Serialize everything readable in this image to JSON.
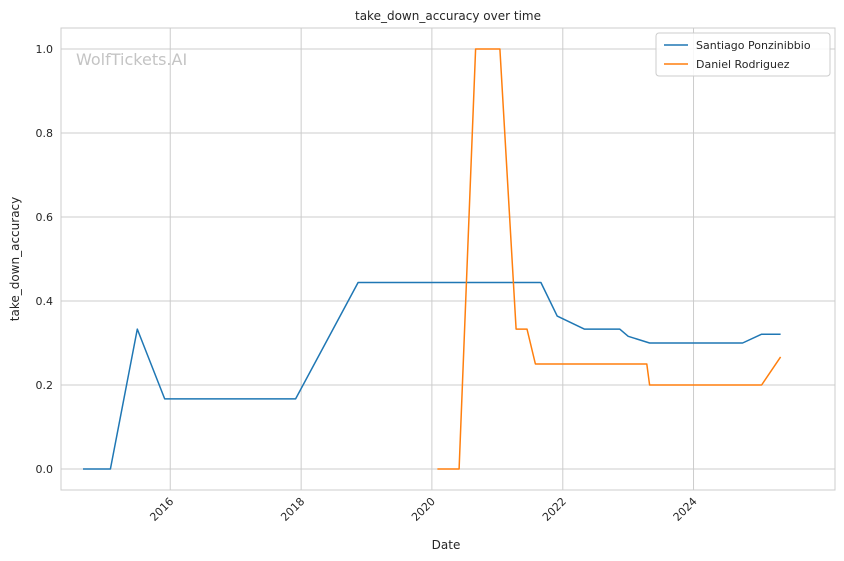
{
  "watermark": "WolfTickets.AI",
  "chart_data": {
    "type": "line",
    "title": "take_down_accuracy over time",
    "xlabel": "Date",
    "ylabel": "take_down_accuracy",
    "x_ticks": [
      "2016",
      "2018",
      "2020",
      "2022",
      "2024"
    ],
    "y_ticks": [
      "0.0",
      "0.2",
      "0.4",
      "0.6",
      "0.8",
      "1.0"
    ],
    "xlim": [
      "2014-05-01",
      "2026-03-01"
    ],
    "ylim": [
      -0.05,
      1.05
    ],
    "grid": true,
    "legend_position": "top-right",
    "series": [
      {
        "name": "Santiago Ponzinibbio",
        "color": "#1f77b4",
        "points": [
          [
            "2014-09-01",
            0.0
          ],
          [
            "2015-02-01",
            0.0
          ],
          [
            "2015-07-01",
            0.333
          ],
          [
            "2015-12-01",
            0.167
          ],
          [
            "2017-12-01",
            0.167
          ],
          [
            "2018-11-15",
            0.444
          ],
          [
            "2021-09-01",
            0.444
          ],
          [
            "2021-12-01",
            0.364
          ],
          [
            "2022-05-01",
            0.333
          ],
          [
            "2022-11-15",
            0.333
          ],
          [
            "2023-01-01",
            0.316
          ],
          [
            "2023-05-01",
            0.3
          ],
          [
            "2024-10-01",
            0.3
          ],
          [
            "2025-01-15",
            0.321
          ],
          [
            "2025-05-01",
            0.321
          ]
        ]
      },
      {
        "name": "Daniel Rodriguez",
        "color": "#ff7f0e",
        "points": [
          [
            "2020-02-01",
            0.0
          ],
          [
            "2020-06-01",
            0.0
          ],
          [
            "2020-09-01",
            1.0
          ],
          [
            "2021-01-15",
            1.0
          ],
          [
            "2021-04-15",
            0.333
          ],
          [
            "2021-06-15",
            0.333
          ],
          [
            "2021-08-01",
            0.25
          ],
          [
            "2023-04-15",
            0.25
          ],
          [
            "2023-05-01",
            0.2
          ],
          [
            "2025-01-15",
            0.2
          ],
          [
            "2025-05-01",
            0.267
          ]
        ]
      }
    ]
  }
}
